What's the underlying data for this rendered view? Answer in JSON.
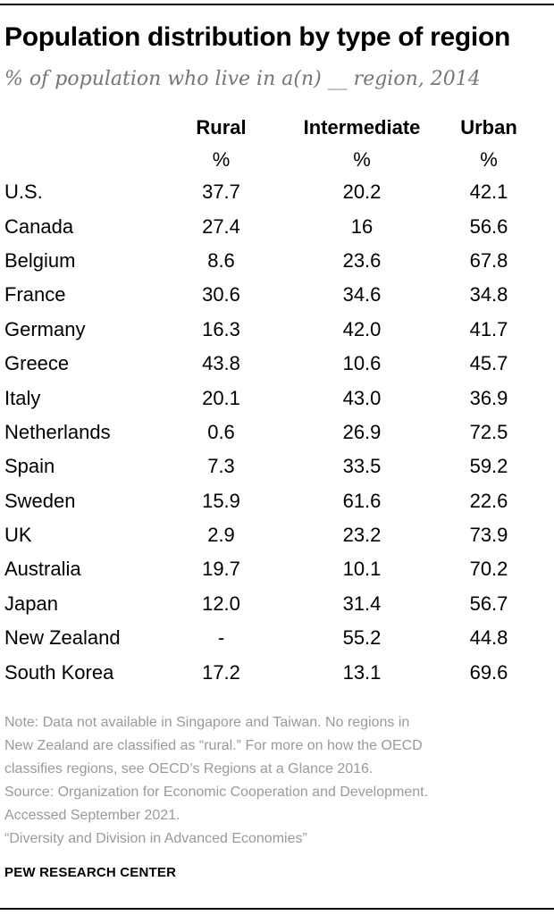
{
  "header": {
    "title": "Population distribution by type of region",
    "subtitle": "% of population who live in a(n) __ region, 2014"
  },
  "table": {
    "columns": [
      "Rural",
      "Intermediate",
      "Urban"
    ],
    "units": [
      "%",
      "%",
      "%"
    ],
    "rows": [
      {
        "country": "U.S.",
        "rural": "37.7",
        "intermediate": "20.2",
        "urban": "42.1"
      },
      {
        "country": "Canada",
        "rural": "27.4",
        "intermediate": "16",
        "urban": "56.6"
      },
      {
        "country": "Belgium",
        "rural": "8.6",
        "intermediate": "23.6",
        "urban": "67.8"
      },
      {
        "country": "France",
        "rural": "30.6",
        "intermediate": "34.6",
        "urban": "34.8"
      },
      {
        "country": "Germany",
        "rural": "16.3",
        "intermediate": "42.0",
        "urban": "41.7"
      },
      {
        "country": "Greece",
        "rural": "43.8",
        "intermediate": "10.6",
        "urban": "45.7"
      },
      {
        "country": "Italy",
        "rural": "20.1",
        "intermediate": "43.0",
        "urban": "36.9"
      },
      {
        "country": "Netherlands",
        "rural": "0.6",
        "intermediate": "26.9",
        "urban": "72.5"
      },
      {
        "country": "Spain",
        "rural": "7.3",
        "intermediate": "33.5",
        "urban": "59.2"
      },
      {
        "country": "Sweden",
        "rural": "15.9",
        "intermediate": "61.6",
        "urban": "22.6"
      },
      {
        "country": "UK",
        "rural": "2.9",
        "intermediate": "23.2",
        "urban": "73.9"
      },
      {
        "country": "Australia",
        "rural": "19.7",
        "intermediate": "10.1",
        "urban": "70.2"
      },
      {
        "country": "Japan",
        "rural": "12.0",
        "intermediate": "31.4",
        "urban": "56.7"
      },
      {
        "country": "New Zealand",
        "rural": "-",
        "intermediate": "55.2",
        "urban": "44.8"
      },
      {
        "country": "South Korea",
        "rural": "17.2",
        "intermediate": "13.1",
        "urban": "69.6"
      }
    ]
  },
  "chart_data": {
    "type": "table",
    "title": "Population distribution by type of region",
    "subtitle": "% of population who live in a(n) __ region, 2014",
    "unit": "%",
    "columns": [
      "Rural",
      "Intermediate",
      "Urban"
    ],
    "categories": [
      "U.S.",
      "Canada",
      "Belgium",
      "France",
      "Germany",
      "Greece",
      "Italy",
      "Netherlands",
      "Spain",
      "Sweden",
      "UK",
      "Australia",
      "Japan",
      "New Zealand",
      "South Korea"
    ],
    "series": [
      {
        "name": "Rural",
        "values": [
          37.7,
          27.4,
          8.6,
          30.6,
          16.3,
          43.8,
          20.1,
          0.6,
          7.3,
          15.9,
          2.9,
          19.7,
          12.0,
          null,
          17.2
        ]
      },
      {
        "name": "Intermediate",
        "values": [
          20.2,
          16,
          23.6,
          34.6,
          42.0,
          10.6,
          43.0,
          26.9,
          33.5,
          61.6,
          23.2,
          10.1,
          31.4,
          55.2,
          13.1
        ]
      },
      {
        "name": "Urban",
        "values": [
          42.1,
          56.6,
          67.8,
          34.8,
          41.7,
          45.7,
          36.9,
          72.5,
          59.2,
          22.6,
          73.9,
          70.2,
          56.7,
          44.8,
          69.6
        ]
      }
    ],
    "missing_value_marker": "-"
  },
  "notes": {
    "note_lines": [
      "Note: Data not available in Singapore and Taiwan. No regions in",
      "New Zealand are classified as “rural.” For more on how the OECD",
      "classifies regions, see OECD’s Regions at a Glance 2016."
    ],
    "source_lines": [
      "Source: Organization for Economic Cooperation and Development.",
      "Accessed September 2021."
    ],
    "citation": "“Diversity and Division in Advanced Economies”"
  },
  "footer": {
    "brand": "PEW RESEARCH CENTER"
  },
  "colors": {
    "text": "#000000",
    "subtitle": "#767676",
    "note": "#9a9a9a",
    "rule": "#000000",
    "background": "#ffffff"
  }
}
